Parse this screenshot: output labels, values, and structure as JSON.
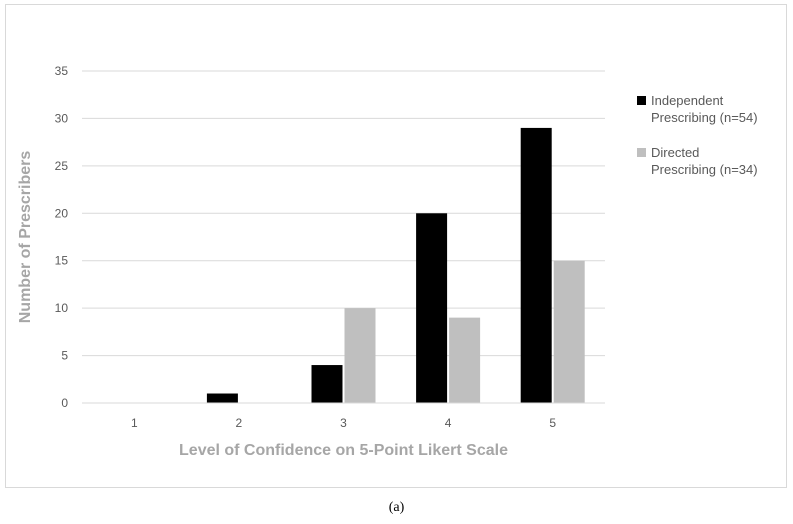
{
  "chart_data": {
    "type": "bar",
    "categories": [
      "1",
      "2",
      "3",
      "4",
      "5"
    ],
    "series": [
      {
        "name": "Independent Prescribing (n=54)",
        "legend_lines": [
          "Independent",
          "Prescribing (n=54)"
        ],
        "color": "#000000",
        "values": [
          0,
          1,
          4,
          20,
          29
        ]
      },
      {
        "name": "Directed Prescribing (n=34)",
        "legend_lines": [
          "Directed",
          "Prescribing (n=34)"
        ],
        "color": "#bfbfbf",
        "values": [
          0,
          0,
          10,
          9,
          15
        ]
      }
    ],
    "xlabel": "Level of Confidence on 5-Point Likert Scale",
    "ylabel": "Number of Prescribers",
    "ylim": [
      0,
      35
    ],
    "yticks": [
      0,
      5,
      10,
      15,
      20,
      25,
      30,
      35
    ],
    "grid": true,
    "legend": "right"
  },
  "caption": "(a)"
}
